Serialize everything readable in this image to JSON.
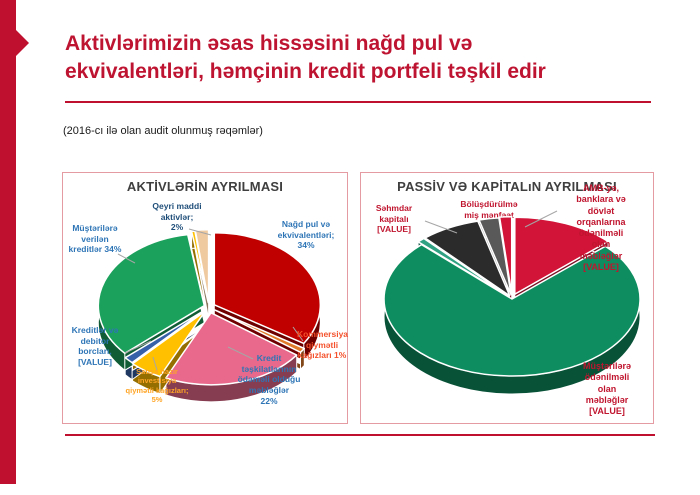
{
  "slide": {
    "title": "Aktivlərimizin əsas hissəsini nağd pul və\nekvivalentləri, həmçinin kredit portfeli təşkil edir",
    "subtitle": "(2016-cı ilə olan audit olunmuş rəqəmlər)",
    "accent_color": "#C0102F"
  },
  "charts": {
    "left": {
      "title": "AKTİVLƏRİN AYRILMASI",
      "labels": {
        "qeyri": "Qeyri maddi\naktivlər;\n2%",
        "nagd": "Nağd pul və\nekvivalentləri;\n34%",
        "musteri": "Müştərilərə\nverilən\nkreditlər 34%",
        "kreditler_debitor": "Kreditlər və\ndebitor\nborcları,\n[VALUE]",
        "satisa": "Satışa hazır\ninvestisiya\nqiymətli kağızları;\n5%",
        "kredit_teskilat": "Kredit\ntəşkilatlarının\nödəməli olduğu\nməbləğlər\n22%",
        "kommersiya": "Kommersiya\nqiymətli\nkağızları 1%"
      }
    },
    "right": {
      "title": "PASSİV VƏ KAPİTALıN AYRILMASI",
      "labels": {
        "sehmdar": "Səhmdar\nkapitalı\n[VALUE]",
        "bolus": "Bölüşdürülmə\nmiş mənfəət\n[VALUE]",
        "amb": "AMB-yə,\nbanklara və\ndövlət\norqanlarına\nödənilməli\nolan\nməbləğlər\n[VALUE]",
        "musterilere": "Müştərilərə\nödənilməli\nolan\nməbləğlər\n[VALUE]"
      }
    }
  },
  "chart_data": [
    {
      "type": "pie",
      "title": "AKTİVLƏRİN AYRILMASI",
      "note": "3D exploded pie, values in % of total assets",
      "start_angle": -90,
      "slices": [
        {
          "label": "Nağd pul və ekvivalentləri",
          "value": 34,
          "color": "#C00000"
        },
        {
          "label": "Kommersiya qiymətli kağızları",
          "value": 1,
          "color": "#E07B2A"
        },
        {
          "label": "Kredit təşkilatlarının ödəməli olduğu məbləğlər",
          "value": 22,
          "color": "#E8698B"
        },
        {
          "label": "Satışa hazır investisiya qiymətli kağızları",
          "value": 5,
          "color": "#FFC000"
        },
        {
          "label": "Kreditlər və debitor borcları",
          "value": 1.5,
          "value_label": "[VALUE]",
          "color": "#3660A8"
        },
        {
          "label": "Müştərilərə verilən kreditlər",
          "value": 34,
          "color": "#1CA15C"
        },
        {
          "label": "",
          "value": 0.5,
          "color": "#FFC000"
        },
        {
          "label": "Qeyri maddi aktivlər",
          "value": 2,
          "color": "#EFC9A0"
        }
      ]
    },
    {
      "type": "pie",
      "title": "PASSİV VƏ KAPİTALıN AYRILMASI",
      "note": "3D pie, slice sizes estimated from pixels; data labels show [VALUE]",
      "start_angle": -90,
      "slices": [
        {
          "label": "AMB-yə, banklara və dövlət orqanlarına ödənilməli olan məbləğlər",
          "value": 13,
          "value_label": "[VALUE]",
          "color": "#D11438"
        },
        {
          "label": "Müştərilərə ödənilməli olan məbləğlər",
          "value": 74.5,
          "value_label": "[VALUE]",
          "color": "#0E8E60"
        },
        {
          "label": "",
          "value": 1,
          "color": "#31A183"
        },
        {
          "label": "Səhmdar kapitalı",
          "value": 7.5,
          "value_label": "[VALUE]",
          "color": "#2B2B2B"
        },
        {
          "label": "Bölüşdürülməmiş mənfəət",
          "value": 2.5,
          "value_label": "[VALUE]",
          "color": "#595959"
        },
        {
          "label": "",
          "value": 1.5,
          "color": "#D11438"
        }
      ]
    }
  ]
}
